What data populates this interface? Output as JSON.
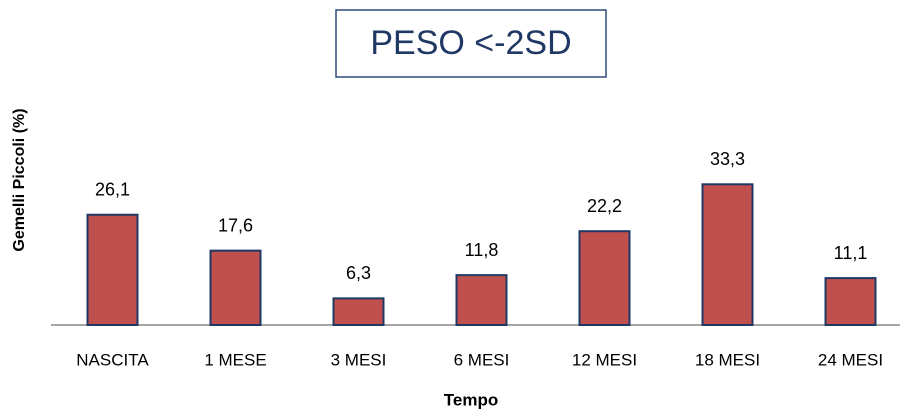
{
  "chart_data": {
    "type": "bar",
    "title": "PESO <-2SD",
    "x_label": "Tempo",
    "y_label": "Gemelli Piccoli (%)",
    "categories": [
      "NASCITA",
      "1 MESE",
      "3 MESI",
      "6 MESI",
      "12 MESI",
      "18 MESI",
      "24 MESI"
    ],
    "values": [
      26.1,
      17.6,
      6.3,
      11.8,
      22.2,
      33.3,
      11.1
    ],
    "value_labels": [
      "26,1",
      "17,6",
      "6,3",
      "11,8",
      "22,2",
      "33,3",
      "11,1"
    ],
    "color": "#c0504d",
    "ylim": [
      0,
      40
    ]
  }
}
